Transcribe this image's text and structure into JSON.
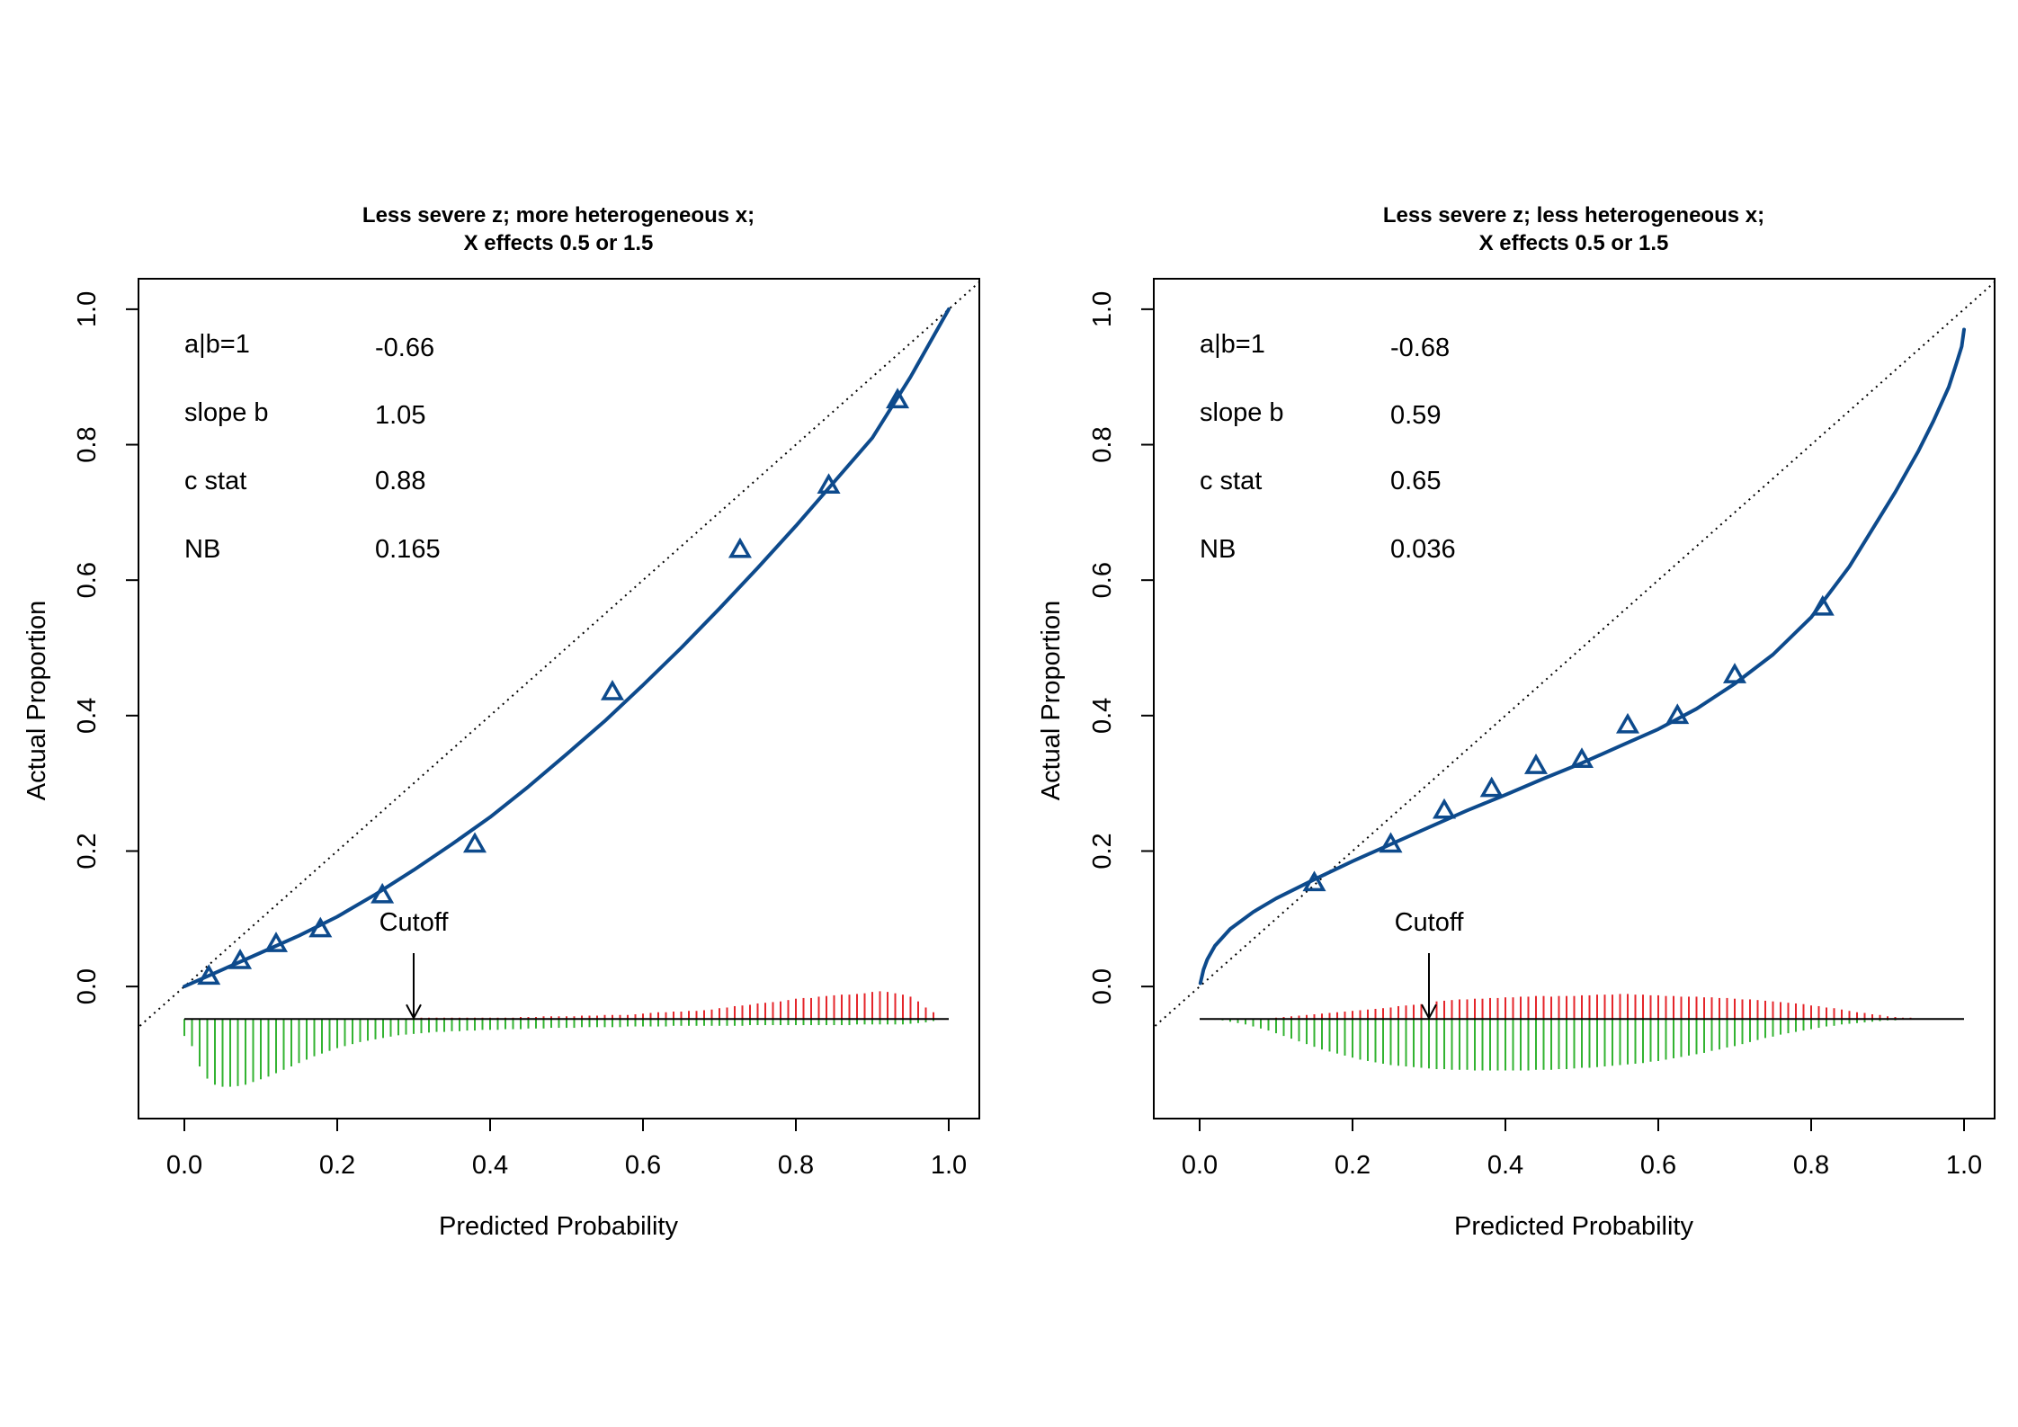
{
  "colors": {
    "curve": "#0d4a8c",
    "points": "#0d4a8c",
    "positive_spikes": "#e4262b",
    "negative_spikes": "#33b332",
    "frame": "#000000",
    "reference_line": "#000000"
  },
  "chart_data": [
    {
      "type": "line",
      "title_line1": "Less severe z; more heterogeneous x;",
      "title_line2": "X effects 0.5 or 1.5",
      "xlabel": "Predicted Probability",
      "ylabel": "Actual Proportion",
      "xlim": [
        -0.06,
        1.04
      ],
      "ylim": [
        -0.195,
        1.045
      ],
      "x_ticks": [
        "0.0",
        "0.2",
        "0.4",
        "0.6",
        "0.8",
        "1.0"
      ],
      "y_ticks": [
        "0.0",
        "0.2",
        "0.4",
        "0.6",
        "0.8",
        "1.0"
      ],
      "grid": false,
      "legend": "none",
      "reference_line": "diagonal y = x (dotted)",
      "stats": [
        {
          "label": "a|b=1",
          "value": "-0.66"
        },
        {
          "label": "slope b",
          "value": "1.05"
        },
        {
          "label": "c stat",
          "value": "0.88"
        },
        {
          "label": "NB",
          "value": "0.165"
        }
      ],
      "cutoff": {
        "label": "Cutoff",
        "x": 0.3
      },
      "calibration_curve": {
        "x": [
          0.0,
          0.05,
          0.1,
          0.15,
          0.2,
          0.25,
          0.3,
          0.35,
          0.4,
          0.45,
          0.5,
          0.55,
          0.6,
          0.65,
          0.7,
          0.75,
          0.8,
          0.85,
          0.9,
          0.95,
          1.0
        ],
        "y": [
          0.0,
          0.025,
          0.05,
          0.075,
          0.103,
          0.136,
          0.172,
          0.21,
          0.25,
          0.295,
          0.343,
          0.392,
          0.445,
          0.5,
          0.558,
          0.618,
          0.68,
          0.745,
          0.81,
          0.9,
          1.0
        ]
      },
      "grouped_points": {
        "x": [
          0.032,
          0.073,
          0.12,
          0.178,
          0.259,
          0.38,
          0.56,
          0.727,
          0.843,
          0.933
        ],
        "y": [
          0.015,
          0.038,
          0.063,
          0.085,
          0.135,
          0.21,
          0.435,
          0.645,
          0.74,
          0.866
        ]
      },
      "spike_distribution": {
        "baseline": -0.048,
        "x": [
          0.0,
          0.01,
          0.02,
          0.03,
          0.04,
          0.05,
          0.06,
          0.07,
          0.08,
          0.09,
          0.1,
          0.11,
          0.12,
          0.13,
          0.14,
          0.15,
          0.16,
          0.17,
          0.18,
          0.19,
          0.2,
          0.21,
          0.22,
          0.23,
          0.24,
          0.25,
          0.26,
          0.27,
          0.28,
          0.29,
          0.3,
          0.31,
          0.32,
          0.33,
          0.34,
          0.35,
          0.36,
          0.37,
          0.38,
          0.39,
          0.4,
          0.41,
          0.42,
          0.43,
          0.44,
          0.45,
          0.46,
          0.47,
          0.48,
          0.49,
          0.5,
          0.51,
          0.52,
          0.53,
          0.54,
          0.55,
          0.56,
          0.57,
          0.58,
          0.59,
          0.6,
          0.61,
          0.62,
          0.63,
          0.64,
          0.65,
          0.66,
          0.67,
          0.68,
          0.69,
          0.7,
          0.71,
          0.72,
          0.73,
          0.74,
          0.75,
          0.76,
          0.77,
          0.78,
          0.79,
          0.8,
          0.81,
          0.82,
          0.83,
          0.84,
          0.85,
          0.86,
          0.87,
          0.88,
          0.89,
          0.9,
          0.91,
          0.92,
          0.93,
          0.94,
          0.95,
          0.96,
          0.97,
          0.98
        ],
        "above": [
          0.0,
          0.0,
          0.0,
          0.0,
          0.0,
          0.0,
          0.0,
          0.0,
          0.0,
          0.0,
          0.001,
          0.001,
          0.001,
          0.001,
          0.001,
          0.001,
          0.001,
          0.001,
          0.001,
          0.001,
          0.001,
          0.001,
          0.001,
          0.001,
          0.001,
          0.001,
          0.001,
          0.001,
          0.001,
          0.001,
          0.002,
          0.002,
          0.002,
          0.002,
          0.002,
          0.002,
          0.002,
          0.002,
          0.002,
          0.002,
          0.002,
          0.002,
          0.002,
          0.002,
          0.003,
          0.003,
          0.003,
          0.004,
          0.004,
          0.004,
          0.004,
          0.004,
          0.005,
          0.005,
          0.005,
          0.006,
          0.006,
          0.006,
          0.006,
          0.007,
          0.008,
          0.009,
          0.01,
          0.01,
          0.011,
          0.011,
          0.012,
          0.012,
          0.013,
          0.014,
          0.016,
          0.017,
          0.019,
          0.02,
          0.021,
          0.023,
          0.024,
          0.025,
          0.026,
          0.028,
          0.03,
          0.031,
          0.031,
          0.033,
          0.034,
          0.035,
          0.036,
          0.036,
          0.037,
          0.038,
          0.04,
          0.041,
          0.04,
          0.038,
          0.036,
          0.033,
          0.026,
          0.017,
          0.01
        ],
        "below": [
          0.025,
          0.04,
          0.07,
          0.088,
          0.097,
          0.1,
          0.1,
          0.099,
          0.097,
          0.093,
          0.089,
          0.085,
          0.08,
          0.075,
          0.07,
          0.065,
          0.06,
          0.055,
          0.051,
          0.047,
          0.043,
          0.04,
          0.037,
          0.034,
          0.032,
          0.03,
          0.028,
          0.026,
          0.024,
          0.023,
          0.022,
          0.021,
          0.02,
          0.019,
          0.019,
          0.018,
          0.018,
          0.017,
          0.017,
          0.016,
          0.016,
          0.016,
          0.015,
          0.015,
          0.015,
          0.014,
          0.014,
          0.014,
          0.013,
          0.013,
          0.013,
          0.013,
          0.012,
          0.012,
          0.012,
          0.012,
          0.012,
          0.012,
          0.011,
          0.011,
          0.011,
          0.011,
          0.011,
          0.011,
          0.01,
          0.01,
          0.01,
          0.01,
          0.01,
          0.01,
          0.01,
          0.01,
          0.01,
          0.01,
          0.009,
          0.009,
          0.009,
          0.009,
          0.009,
          0.009,
          0.009,
          0.009,
          0.009,
          0.009,
          0.009,
          0.009,
          0.009,
          0.009,
          0.008,
          0.008,
          0.008,
          0.008,
          0.008,
          0.008,
          0.008,
          0.007,
          0.006,
          0.005,
          0.003
        ]
      }
    },
    {
      "type": "line",
      "title_line1": "Less severe z; less heterogeneous x;",
      "title_line2": "X effects 0.5 or 1.5",
      "xlabel": "Predicted Probability",
      "ylabel": "Actual Proportion",
      "xlim": [
        -0.06,
        1.04
      ],
      "ylim": [
        -0.195,
        1.045
      ],
      "x_ticks": [
        "0.0",
        "0.2",
        "0.4",
        "0.6",
        "0.8",
        "1.0"
      ],
      "y_ticks": [
        "0.0",
        "0.2",
        "0.4",
        "0.6",
        "0.8",
        "1.0"
      ],
      "grid": false,
      "legend": "none",
      "reference_line": "diagonal y = x (dotted)",
      "stats": [
        {
          "label": "a|b=1",
          "value": "-0.68"
        },
        {
          "label": "slope b",
          "value": "0.59"
        },
        {
          "label": "c stat",
          "value": "0.65"
        },
        {
          "label": "NB",
          "value": "0.036"
        }
      ],
      "cutoff": {
        "label": "Cutoff",
        "x": 0.3
      },
      "calibration_curve": {
        "x": [
          0.001,
          0.005,
          0.01,
          0.02,
          0.04,
          0.07,
          0.1,
          0.15,
          0.2,
          0.25,
          0.3,
          0.35,
          0.4,
          0.45,
          0.5,
          0.55,
          0.6,
          0.65,
          0.7,
          0.75,
          0.8,
          0.85,
          0.88,
          0.91,
          0.94,
          0.96,
          0.98,
          0.99,
          0.997,
          1.0
        ],
        "y": [
          0.005,
          0.025,
          0.04,
          0.06,
          0.085,
          0.11,
          0.13,
          0.158,
          0.185,
          0.21,
          0.235,
          0.26,
          0.283,
          0.307,
          0.33,
          0.355,
          0.38,
          0.41,
          0.447,
          0.49,
          0.545,
          0.62,
          0.675,
          0.73,
          0.79,
          0.835,
          0.885,
          0.92,
          0.945,
          0.97
        ]
      },
      "grouped_points": {
        "x": [
          0.15,
          0.25,
          0.32,
          0.382,
          0.44,
          0.5,
          0.56,
          0.625,
          0.7,
          0.815
        ],
        "y": [
          0.153,
          0.21,
          0.26,
          0.292,
          0.326,
          0.335,
          0.386,
          0.4,
          0.46,
          0.56
        ]
      },
      "spike_distribution": {
        "baseline": -0.048,
        "x": [
          0.0,
          0.01,
          0.02,
          0.03,
          0.04,
          0.05,
          0.06,
          0.07,
          0.08,
          0.09,
          0.1,
          0.11,
          0.12,
          0.13,
          0.14,
          0.15,
          0.16,
          0.17,
          0.18,
          0.19,
          0.2,
          0.21,
          0.22,
          0.23,
          0.24,
          0.25,
          0.26,
          0.27,
          0.28,
          0.29,
          0.3,
          0.31,
          0.32,
          0.33,
          0.34,
          0.35,
          0.36,
          0.37,
          0.38,
          0.39,
          0.4,
          0.41,
          0.42,
          0.43,
          0.44,
          0.45,
          0.46,
          0.47,
          0.48,
          0.49,
          0.5,
          0.51,
          0.52,
          0.53,
          0.54,
          0.55,
          0.56,
          0.57,
          0.58,
          0.59,
          0.6,
          0.61,
          0.62,
          0.63,
          0.64,
          0.65,
          0.66,
          0.67,
          0.68,
          0.69,
          0.7,
          0.71,
          0.72,
          0.73,
          0.74,
          0.75,
          0.76,
          0.77,
          0.78,
          0.79,
          0.8,
          0.81,
          0.82,
          0.83,
          0.84,
          0.85,
          0.86,
          0.87,
          0.88,
          0.89,
          0.9,
          0.91,
          0.92,
          0.93,
          0.94,
          0.95
        ],
        "above": [
          0.0,
          0.0,
          0.0,
          0.0,
          0.0,
          0.0,
          0.0,
          0.0,
          0.0,
          0.0,
          0.002,
          0.003,
          0.004,
          0.005,
          0.006,
          0.007,
          0.008,
          0.009,
          0.01,
          0.011,
          0.012,
          0.013,
          0.014,
          0.015,
          0.016,
          0.017,
          0.019,
          0.02,
          0.021,
          0.022,
          0.024,
          0.026,
          0.027,
          0.028,
          0.029,
          0.029,
          0.03,
          0.03,
          0.031,
          0.031,
          0.032,
          0.032,
          0.033,
          0.033,
          0.034,
          0.034,
          0.033,
          0.034,
          0.034,
          0.034,
          0.035,
          0.035,
          0.036,
          0.036,
          0.036,
          0.037,
          0.037,
          0.036,
          0.036,
          0.035,
          0.035,
          0.034,
          0.034,
          0.033,
          0.033,
          0.033,
          0.032,
          0.032,
          0.031,
          0.031,
          0.03,
          0.029,
          0.029,
          0.028,
          0.027,
          0.026,
          0.025,
          0.024,
          0.023,
          0.022,
          0.02,
          0.019,
          0.017,
          0.016,
          0.014,
          0.012,
          0.01,
          0.009,
          0.007,
          0.006,
          0.004,
          0.003,
          0.002,
          0.002,
          0.001,
          0.0
        ],
        "below": [
          0.0,
          0.0,
          0.001,
          0.002,
          0.004,
          0.006,
          0.008,
          0.011,
          0.014,
          0.017,
          0.021,
          0.025,
          0.029,
          0.033,
          0.037,
          0.041,
          0.045,
          0.048,
          0.051,
          0.054,
          0.057,
          0.06,
          0.062,
          0.064,
          0.066,
          0.068,
          0.069,
          0.07,
          0.071,
          0.072,
          0.073,
          0.074,
          0.074,
          0.075,
          0.075,
          0.075,
          0.076,
          0.076,
          0.076,
          0.076,
          0.076,
          0.076,
          0.076,
          0.076,
          0.075,
          0.075,
          0.075,
          0.074,
          0.074,
          0.073,
          0.072,
          0.072,
          0.071,
          0.07,
          0.069,
          0.068,
          0.067,
          0.066,
          0.065,
          0.063,
          0.062,
          0.06,
          0.058,
          0.056,
          0.054,
          0.052,
          0.05,
          0.047,
          0.045,
          0.042,
          0.04,
          0.037,
          0.034,
          0.031,
          0.028,
          0.026,
          0.023,
          0.021,
          0.019,
          0.017,
          0.015,
          0.013,
          0.011,
          0.01,
          0.008,
          0.007,
          0.006,
          0.005,
          0.004,
          0.003,
          0.002,
          0.002,
          0.001,
          0.001,
          0.0,
          0.0
        ]
      }
    }
  ]
}
